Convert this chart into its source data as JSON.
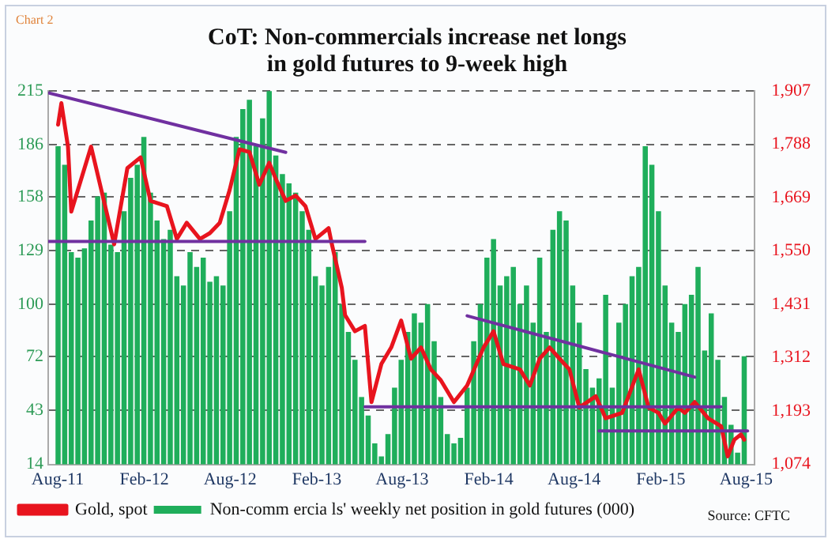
{
  "chart_data": {
    "type": "bar",
    "title": "CoT:  Non-commercials  increase net longs in gold futures to 9-week high",
    "annotations": [
      "Chart 2",
      "Source: CFTC"
    ],
    "xlim": [
      "2011-07-12",
      "2015-08-18"
    ],
    "xticks": [
      {
        "value": "2011-08-01",
        "label": "Aug-11"
      },
      {
        "value": "2012-02-01",
        "label": "Feb-12"
      },
      {
        "value": "2012-08-01",
        "label": "Aug-12"
      },
      {
        "value": "2013-02-01",
        "label": "Feb-13"
      },
      {
        "value": "2013-08-01",
        "label": "Aug-13"
      },
      {
        "value": "2014-02-01",
        "label": "Feb-14"
      },
      {
        "value": "2014-08-01",
        "label": "Aug-14"
      },
      {
        "value": "2015-02-01",
        "label": "Feb-15"
      },
      {
        "value": "2015-08-01",
        "label": "Aug-15"
      }
    ],
    "ylim": [
      14,
      215
    ],
    "yticks": [
      14,
      43,
      72,
      100,
      129,
      158,
      186,
      215
    ],
    "y2lim": [
      1074,
      1907
    ],
    "y2ticks": [
      {
        "value": 1074,
        "label": "1,074"
      },
      {
        "value": 1193,
        "label": "1,193"
      },
      {
        "value": 1312,
        "label": "1,312"
      },
      {
        "value": 1431,
        "label": "1,431"
      },
      {
        "value": 1550,
        "label": "1,550"
      },
      {
        "value": 1669,
        "label": "1,669"
      },
      {
        "value": 1788,
        "label": "1,788"
      },
      {
        "value": 1907,
        "label": "1,907"
      }
    ],
    "grid": "y",
    "legend": "bottom left",
    "series": [
      {
        "name": "Non-comm ercia ls' weekly net position in gold futures (000)",
        "color": "#1fae5b",
        "x": [
          "2011-08-02",
          "2011-08-16",
          "2011-08-30",
          "2011-09-13",
          "2011-09-27",
          "2011-10-11",
          "2011-10-25",
          "2011-11-08",
          "2011-11-22",
          "2011-12-06",
          "2011-12-20",
          "2012-01-03",
          "2012-01-17",
          "2012-01-31",
          "2012-02-14",
          "2012-02-28",
          "2012-03-13",
          "2012-03-27",
          "2012-04-10",
          "2012-04-24",
          "2012-05-08",
          "2012-05-22",
          "2012-06-05",
          "2012-06-19",
          "2012-07-03",
          "2012-07-17",
          "2012-07-31",
          "2012-08-14",
          "2012-08-28",
          "2012-09-11",
          "2012-09-25",
          "2012-10-09",
          "2012-10-23",
          "2012-11-06",
          "2012-11-20",
          "2012-12-04",
          "2012-12-18",
          "2013-01-01",
          "2013-01-15",
          "2013-01-29",
          "2013-02-12",
          "2013-02-26",
          "2013-03-12",
          "2013-03-26",
          "2013-04-09",
          "2013-04-23",
          "2013-05-07",
          "2013-05-21",
          "2013-06-04",
          "2013-06-18",
          "2013-07-02",
          "2013-07-16",
          "2013-07-30",
          "2013-08-13",
          "2013-08-27",
          "2013-09-10",
          "2013-09-24",
          "2013-10-08",
          "2013-10-22",
          "2013-11-05",
          "2013-11-19",
          "2013-12-03",
          "2013-12-17",
          "2013-12-31",
          "2014-01-14",
          "2014-01-28",
          "2014-02-11",
          "2014-02-25",
          "2014-03-11",
          "2014-03-25",
          "2014-04-08",
          "2014-04-22",
          "2014-05-06",
          "2014-05-20",
          "2014-06-03",
          "2014-06-17",
          "2014-07-01",
          "2014-07-15",
          "2014-07-29",
          "2014-08-12",
          "2014-08-26",
          "2014-09-09",
          "2014-09-23",
          "2014-10-07",
          "2014-10-21",
          "2014-11-04",
          "2014-11-18",
          "2014-12-02",
          "2014-12-16",
          "2014-12-30",
          "2015-01-13",
          "2015-01-27",
          "2015-02-10",
          "2015-02-24",
          "2015-03-10",
          "2015-03-24",
          "2015-04-07",
          "2015-04-21",
          "2015-05-05",
          "2015-05-19",
          "2015-06-02",
          "2015-06-16",
          "2015-06-30",
          "2015-07-14",
          "2015-07-28"
        ],
        "values": [
          185,
          175,
          128,
          125,
          130,
          145,
          158,
          160,
          132,
          128,
          150,
          168,
          175,
          190,
          160,
          145,
          135,
          140,
          115,
          110,
          128,
          120,
          125,
          112,
          115,
          110,
          150,
          190,
          205,
          210,
          185,
          200,
          215,
          180,
          170,
          165,
          160,
          150,
          140,
          115,
          110,
          120,
          128,
          100,
          85,
          70,
          50,
          40,
          25,
          18,
          30,
          55,
          70,
          85,
          95,
          90,
          100,
          80,
          50,
          30,
          25,
          28,
          55,
          80,
          100,
          125,
          135,
          110,
          115,
          120,
          100,
          110,
          90,
          125,
          85,
          140,
          150,
          145,
          110,
          90,
          65,
          55,
          60,
          105,
          55,
          90,
          100,
          115,
          120,
          185,
          175,
          150,
          110,
          90,
          85,
          100,
          105,
          120,
          75,
          95,
          70,
          50,
          35,
          20,
          72
        ]
      },
      {
        "name": "Gold, spot",
        "type": "line",
        "axis": "y2",
        "color": "#e8141e",
        "x": [
          "2011-08-02",
          "2011-08-09",
          "2011-08-23",
          "2011-08-30",
          "2011-10-11",
          "2011-11-29",
          "2011-12-27",
          "2012-01-24",
          "2012-02-14",
          "2012-03-20",
          "2012-04-10",
          "2012-05-01",
          "2012-05-29",
          "2012-06-19",
          "2012-07-10",
          "2012-07-31",
          "2012-08-21",
          "2012-09-11",
          "2012-10-02",
          "2012-10-23",
          "2012-11-06",
          "2012-11-27",
          "2012-12-18",
          "2013-01-08",
          "2013-01-29",
          "2013-02-26",
          "2013-03-05",
          "2013-03-26",
          "2013-04-02",
          "2013-04-23",
          "2013-05-14",
          "2013-05-28",
          "2013-06-18",
          "2013-07-09",
          "2013-07-30",
          "2013-08-20",
          "2013-09-10",
          "2013-10-01",
          "2013-10-22",
          "2013-11-19",
          "2013-12-17",
          "2014-01-21",
          "2014-02-11",
          "2014-03-04",
          "2014-04-08",
          "2014-04-29",
          "2014-05-20",
          "2014-06-10",
          "2014-07-01",
          "2014-07-22",
          "2014-08-12",
          "2014-09-16",
          "2014-10-07",
          "2014-11-11",
          "2014-12-16",
          "2015-01-06",
          "2015-01-27",
          "2015-02-10",
          "2015-03-10",
          "2015-03-24",
          "2015-04-14",
          "2015-05-12",
          "2015-06-09",
          "2015-06-23",
          "2015-07-07",
          "2015-07-21",
          "2015-07-28"
        ],
        "values": [
          1832,
          1880,
          1783,
          1638,
          1783,
          1565,
          1735,
          1759,
          1662,
          1650,
          1577,
          1613,
          1577,
          1590,
          1613,
          1686,
          1777,
          1771,
          1698,
          1747,
          1711,
          1662,
          1674,
          1650,
          1577,
          1601,
          1565,
          1468,
          1407,
          1371,
          1383,
          1213,
          1298,
          1335,
          1395,
          1310,
          1335,
          1286,
          1262,
          1213,
          1250,
          1335,
          1371,
          1298,
          1286,
          1250,
          1310,
          1335,
          1310,
          1286,
          1201,
          1226,
          1177,
          1189,
          1286,
          1201,
          1189,
          1165,
          1201,
          1189,
          1213,
          1177,
          1159,
          1092,
          1129,
          1141,
          1129
        ]
      },
      {
        "type": "line",
        "color": "#7030a0",
        "x": [
          "2011-07-12",
          "2012-11-27"
        ],
        "values": [
          214,
          182
        ]
      },
      {
        "type": "line",
        "color": "#7030a0",
        "x": [
          "2011-07-12",
          "2013-05-14"
        ],
        "values": [
          134,
          134
        ]
      },
      {
        "type": "line",
        "color": "#7030a0",
        "x": [
          "2013-12-17",
          "2015-04-14"
        ],
        "values": [
          94,
          61
        ]
      },
      {
        "type": "line",
        "color": "#7030a0",
        "x": [
          "2013-05-14",
          "2015-06-09"
        ],
        "values": [
          45,
          45
        ]
      },
      {
        "type": "line",
        "color": "#7030a0",
        "x": [
          "2014-09-23",
          "2015-08-04"
        ],
        "values": [
          32,
          32
        ]
      }
    ]
  }
}
